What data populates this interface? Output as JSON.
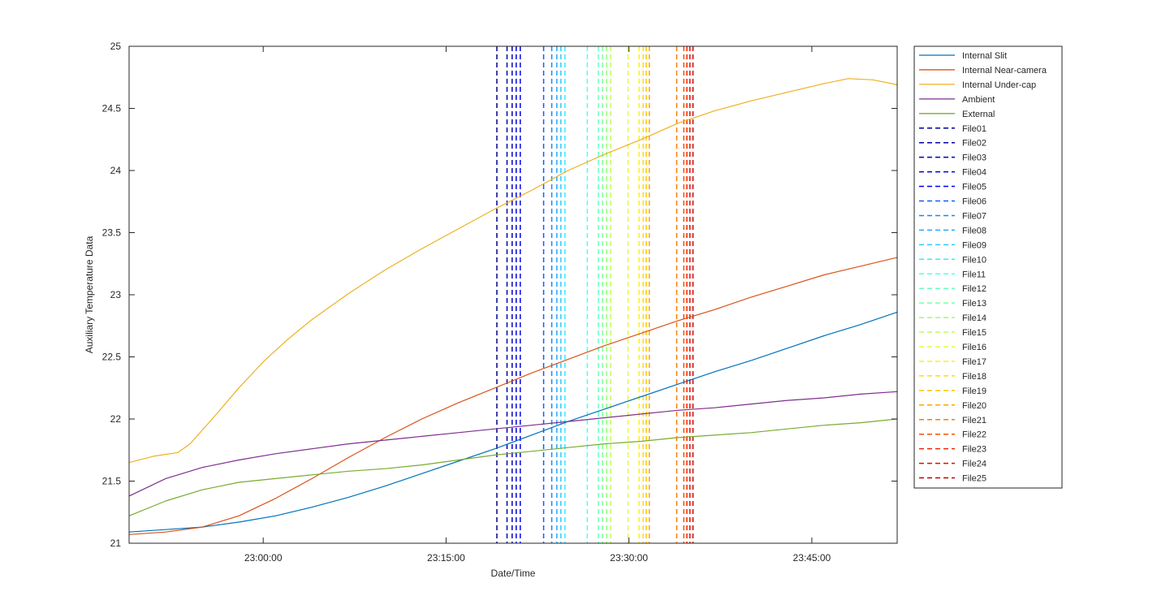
{
  "chart_data": {
    "type": "line",
    "title": "",
    "xlabel": "Date/Time",
    "ylabel": "Auxiliary Temperature Data",
    "x_unit": "time of day",
    "xlim": [
      "22:49:00",
      "23:52:00"
    ],
    "ylim": [
      21,
      25
    ],
    "xticks": [
      "23:00:00",
      "23:15:00",
      "23:30:00",
      "23:45:00"
    ],
    "yticks": [
      21,
      21.5,
      22,
      22.5,
      23,
      23.5,
      24,
      24.5,
      25
    ],
    "ytick_labels": [
      "21",
      "21.5",
      "22",
      "22.5",
      "23",
      "23.5",
      "24",
      "24.5",
      "25"
    ],
    "grid": false,
    "legend_position": "outside-right",
    "series": [
      {
        "name": "Internal Slit",
        "color": "#0072bd",
        "x": [
          "22:49:00",
          "22:52:00",
          "22:55:00",
          "22:58:00",
          "23:01:00",
          "23:04:00",
          "23:07:00",
          "23:10:00",
          "23:13:00",
          "23:16:00",
          "23:19:00",
          "23:22:00",
          "23:25:00",
          "23:28:00",
          "23:31:00",
          "23:34:00",
          "23:37:00",
          "23:40:00",
          "23:43:00",
          "23:46:00",
          "23:49:00",
          "23:52:00"
        ],
        "y": [
          21.09,
          21.11,
          21.13,
          21.17,
          21.22,
          21.29,
          21.37,
          21.46,
          21.56,
          21.66,
          21.76,
          21.87,
          21.98,
          22.08,
          22.18,
          22.28,
          22.38,
          22.47,
          22.57,
          22.67,
          22.76,
          22.86
        ]
      },
      {
        "name": "Internal Near-camera",
        "color": "#d95319",
        "x": [
          "22:49:00",
          "22:52:00",
          "22:55:00",
          "22:58:00",
          "23:01:00",
          "23:04:00",
          "23:07:00",
          "23:10:00",
          "23:13:00",
          "23:16:00",
          "23:19:00",
          "23:22:00",
          "23:25:00",
          "23:28:00",
          "23:31:00",
          "23:34:00",
          "23:37:00",
          "23:40:00",
          "23:43:00",
          "23:46:00",
          "23:49:00",
          "23:52:00"
        ],
        "y": [
          21.07,
          21.09,
          21.13,
          21.22,
          21.36,
          21.52,
          21.69,
          21.85,
          22.0,
          22.13,
          22.25,
          22.37,
          22.48,
          22.59,
          22.69,
          22.79,
          22.88,
          22.98,
          23.07,
          23.16,
          23.23,
          23.3
        ]
      },
      {
        "name": "Internal Under-cap",
        "color": "#edb120",
        "x": [
          "22:49:00",
          "22:51:00",
          "22:53:00",
          "22:54:00",
          "22:56:00",
          "22:58:00",
          "23:00:00",
          "23:02:00",
          "23:04:00",
          "23:07:00",
          "23:10:00",
          "23:13:00",
          "23:16:00",
          "23:19:00",
          "23:22:00",
          "23:25:00",
          "23:28:00",
          "23:31:00",
          "23:34:00",
          "23:37:00",
          "23:40:00",
          "23:43:00",
          "23:46:00",
          "23:48:00",
          "23:50:00",
          "23:52:00"
        ],
        "y": [
          21.65,
          21.7,
          21.73,
          21.8,
          22.02,
          22.25,
          22.46,
          22.64,
          22.8,
          23.01,
          23.2,
          23.37,
          23.53,
          23.69,
          23.84,
          24.0,
          24.13,
          24.25,
          24.38,
          24.48,
          24.56,
          24.63,
          24.7,
          24.74,
          24.73,
          24.69
        ]
      },
      {
        "name": "Ambient",
        "color": "#7e2f8e",
        "x": [
          "22:49:00",
          "22:52:00",
          "22:55:00",
          "22:58:00",
          "23:01:00",
          "23:04:00",
          "23:07:00",
          "23:10:00",
          "23:13:00",
          "23:16:00",
          "23:19:00",
          "23:22:00",
          "23:25:00",
          "23:28:00",
          "23:31:00",
          "23:34:00",
          "23:37:00",
          "23:40:00",
          "23:43:00",
          "23:46:00",
          "23:49:00",
          "23:52:00"
        ],
        "y": [
          21.38,
          21.52,
          21.61,
          21.67,
          21.72,
          21.76,
          21.8,
          21.83,
          21.86,
          21.89,
          21.92,
          21.95,
          21.98,
          22.01,
          22.04,
          22.07,
          22.09,
          22.12,
          22.15,
          22.17,
          22.2,
          22.22
        ]
      },
      {
        "name": "External",
        "color": "#77ac30",
        "x": [
          "22:49:00",
          "22:52:00",
          "22:55:00",
          "22:58:00",
          "23:01:00",
          "23:04:00",
          "23:07:00",
          "23:10:00",
          "23:13:00",
          "23:16:00",
          "23:19:00",
          "23:22:00",
          "23:25:00",
          "23:28:00",
          "23:31:00",
          "23:34:00",
          "23:37:00",
          "23:40:00",
          "23:43:00",
          "23:46:00",
          "23:49:00",
          "23:52:00"
        ],
        "y": [
          21.22,
          21.34,
          21.43,
          21.49,
          21.52,
          21.55,
          21.58,
          21.6,
          21.63,
          21.67,
          21.71,
          21.74,
          21.77,
          21.8,
          21.82,
          21.85,
          21.87,
          21.89,
          21.92,
          21.95,
          21.97,
          22.0
        ]
      }
    ],
    "vlines": [
      {
        "name": "File01",
        "color": "#00008f",
        "x": "23:19:10"
      },
      {
        "name": "File02",
        "color": "#0000a8",
        "x": "23:20:00"
      },
      {
        "name": "File03",
        "color": "#0000c2",
        "x": "23:20:25"
      },
      {
        "name": "File04",
        "color": "#0000dc",
        "x": "23:20:45"
      },
      {
        "name": "File05",
        "color": "#0000f6",
        "x": "23:21:05"
      },
      {
        "name": "File06",
        "color": "#0f5bff",
        "x": "23:23:00"
      },
      {
        "name": "File07",
        "color": "#1b84ff",
        "x": "23:23:40"
      },
      {
        "name": "File08",
        "color": "#23a8ff",
        "x": "23:24:05"
      },
      {
        "name": "File09",
        "color": "#2fc8ff",
        "x": "23:24:25"
      },
      {
        "name": "File10",
        "color": "#31eefc",
        "x": "23:24:45"
      },
      {
        "name": "File11",
        "color": "#50fff0",
        "x": "23:26:35"
      },
      {
        "name": "File12",
        "color": "#66ffc6",
        "x": "23:27:30"
      },
      {
        "name": "File13",
        "color": "#7cff9f",
        "x": "23:27:50"
      },
      {
        "name": "File14",
        "color": "#97ff77",
        "x": "23:28:10"
      },
      {
        "name": "File15",
        "color": "#baff54",
        "x": "23:28:30"
      },
      {
        "name": "File16",
        "color": "#e2ff33",
        "x": "23:29:55"
      },
      {
        "name": "File17",
        "color": "#fff300",
        "x": "23:30:50"
      },
      {
        "name": "File18",
        "color": "#ffdc00",
        "x": "23:31:10"
      },
      {
        "name": "File19",
        "color": "#ffc400",
        "x": "23:31:25"
      },
      {
        "name": "File20",
        "color": "#ffa600",
        "x": "23:31:40"
      },
      {
        "name": "File21",
        "color": "#ff7b00",
        "x": "23:33:55"
      },
      {
        "name": "File22",
        "color": "#ff4f00",
        "x": "23:34:30"
      },
      {
        "name": "File23",
        "color": "#f02800",
        "x": "23:34:45"
      },
      {
        "name": "File24",
        "color": "#dc1000",
        "x": "23:35:00"
      },
      {
        "name": "File25",
        "color": "#c80000",
        "x": "23:35:15"
      }
    ]
  }
}
